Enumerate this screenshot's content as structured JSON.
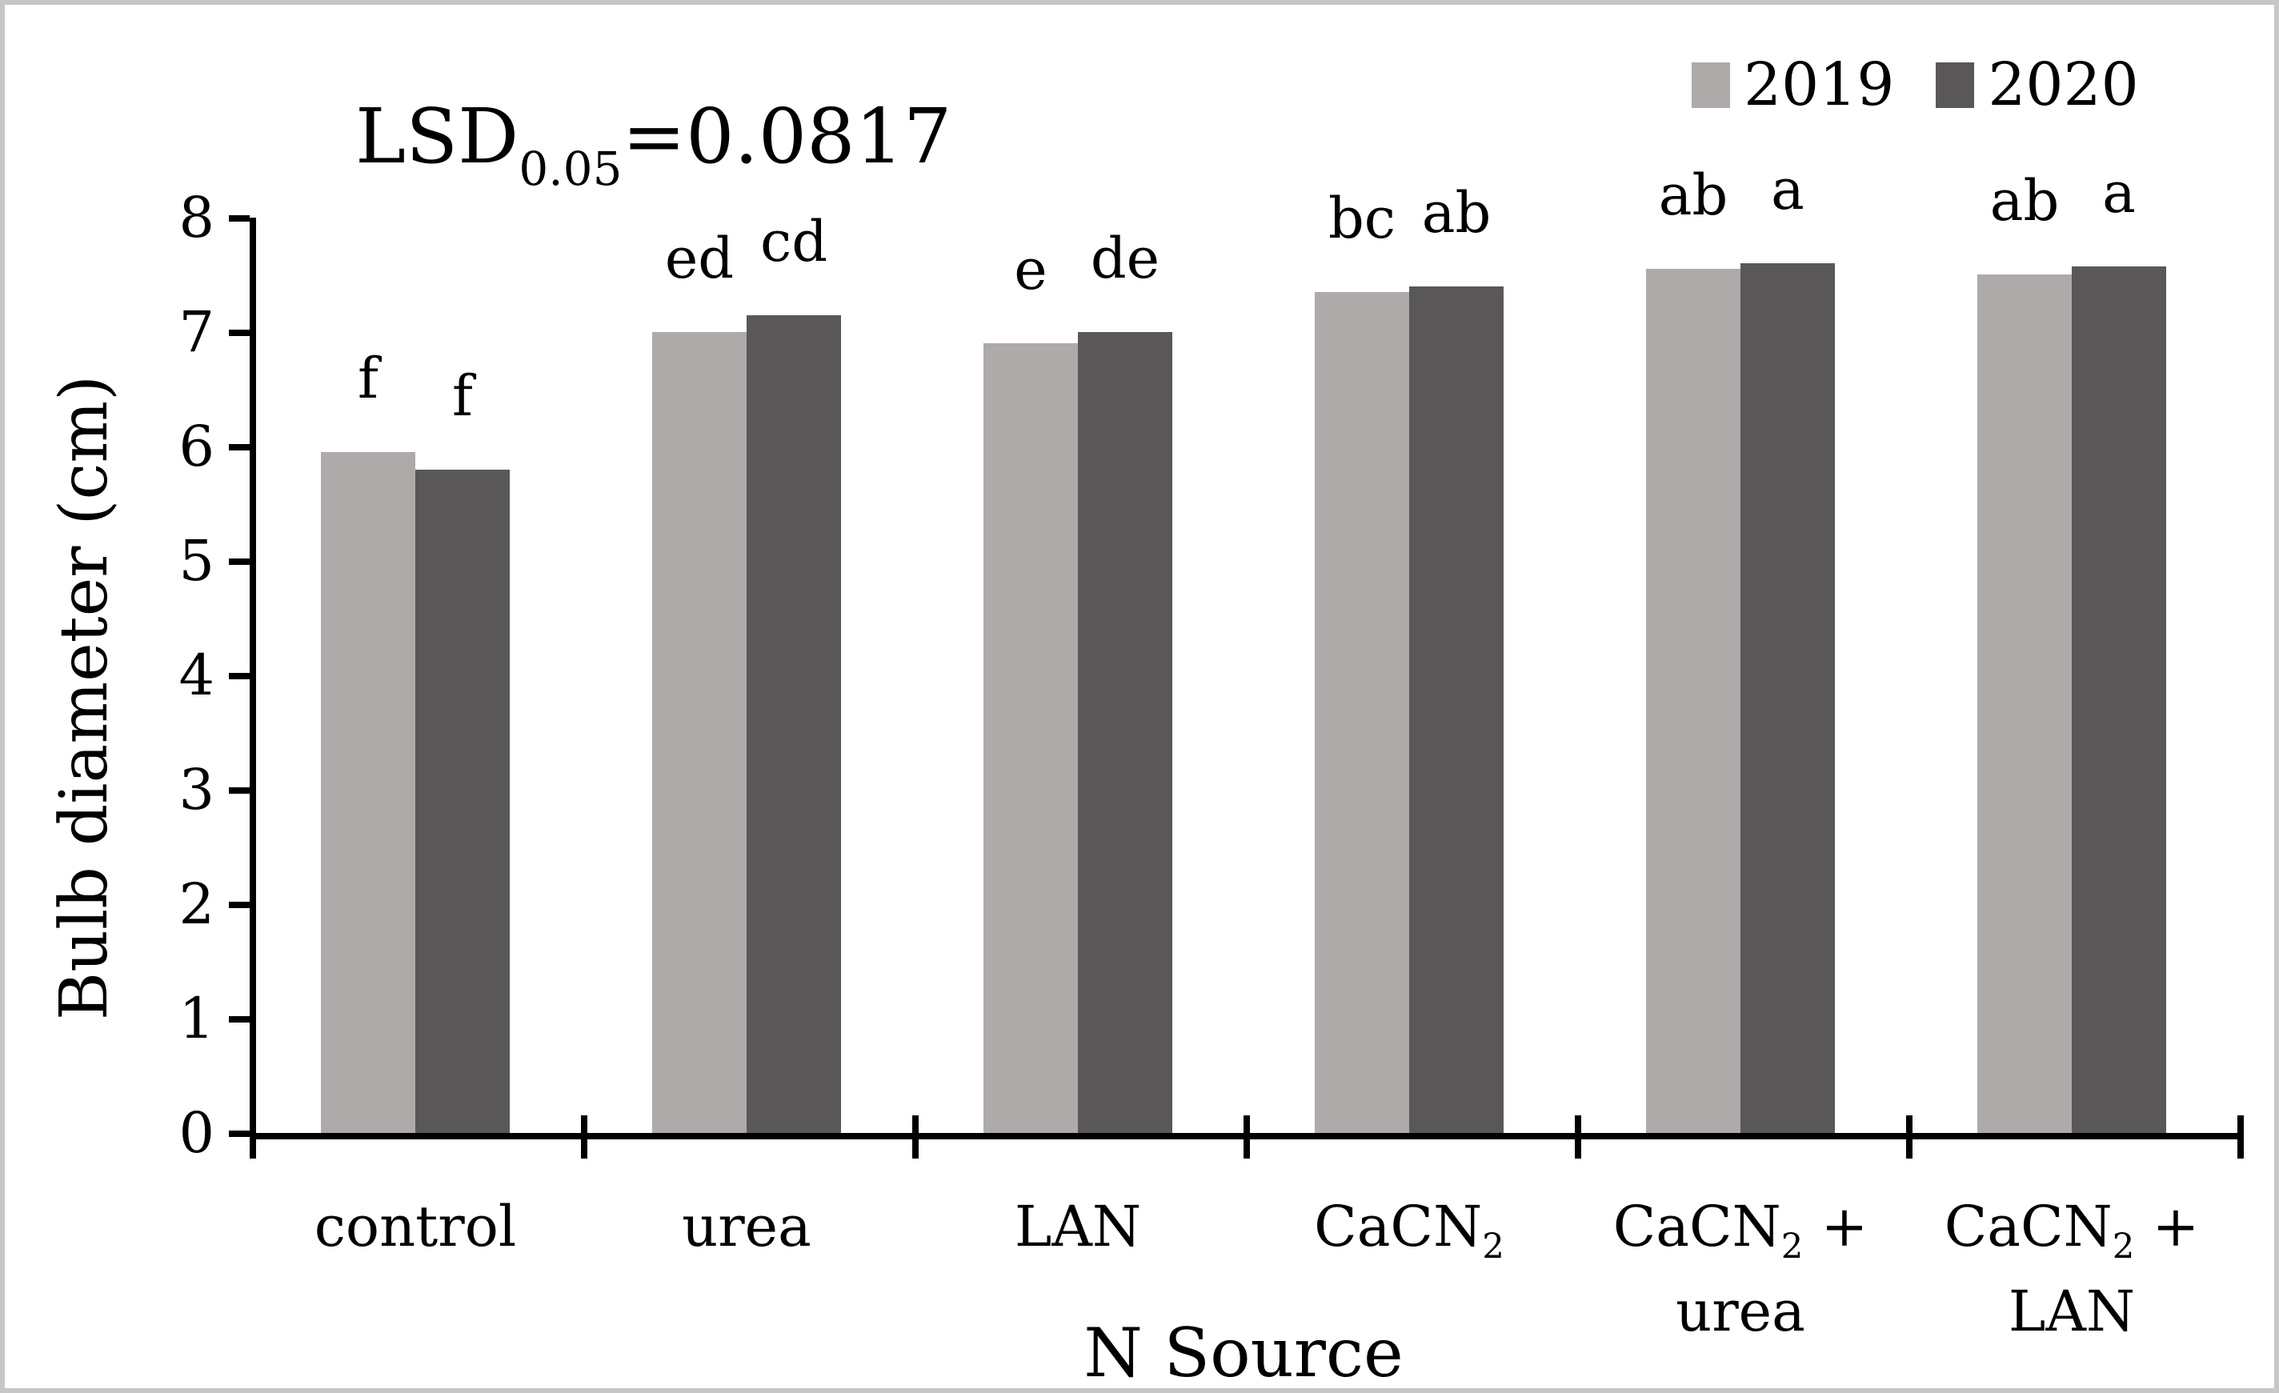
{
  "figure": {
    "background": "#ffffff",
    "border_color": "#c7c7c7"
  },
  "annotation": {
    "prefix": "LSD",
    "subscript": "0.05",
    "value": "=0.0817"
  },
  "legend": {
    "position": "top-right",
    "items": [
      {
        "label": "2019",
        "color": "#aeaaaa"
      },
      {
        "label": "2020",
        "color": "#595757"
      }
    ]
  },
  "chart_data": {
    "type": "bar",
    "title": "",
    "xlabel": "N Source",
    "ylabel": "Bulb diameter (cm)",
    "ylim": [
      0,
      8
    ],
    "yticks": [
      0,
      1,
      2,
      3,
      4,
      5,
      6,
      7,
      8
    ],
    "grid": false,
    "legend_position": "top-right",
    "annotation": "LSD0.05=0.0817",
    "categories": [
      "control",
      "urea",
      "LAN",
      "CaCN₂",
      "CaCN₂ + urea",
      "CaCN₂ + LAN"
    ],
    "category_lines": [
      [
        "control"
      ],
      [
        "urea"
      ],
      [
        "LAN"
      ],
      [
        "CaCN₂"
      ],
      [
        "CaCN₂ +",
        "urea"
      ],
      [
        "CaCN₂ +",
        "LAN"
      ]
    ],
    "series": [
      {
        "name": "2019",
        "color": "#aeaaaa",
        "values": [
          5.95,
          7.0,
          6.9,
          7.35,
          7.55,
          7.5
        ],
        "letters": [
          "f",
          "ed",
          "e",
          "bc",
          "ab",
          "ab"
        ]
      },
      {
        "name": "2020",
        "color": "#595757",
        "values": [
          5.8,
          7.15,
          7.0,
          7.4,
          7.6,
          7.57
        ],
        "letters": [
          "f",
          "cd",
          "de",
          "ab",
          "a",
          "a"
        ]
      }
    ]
  }
}
